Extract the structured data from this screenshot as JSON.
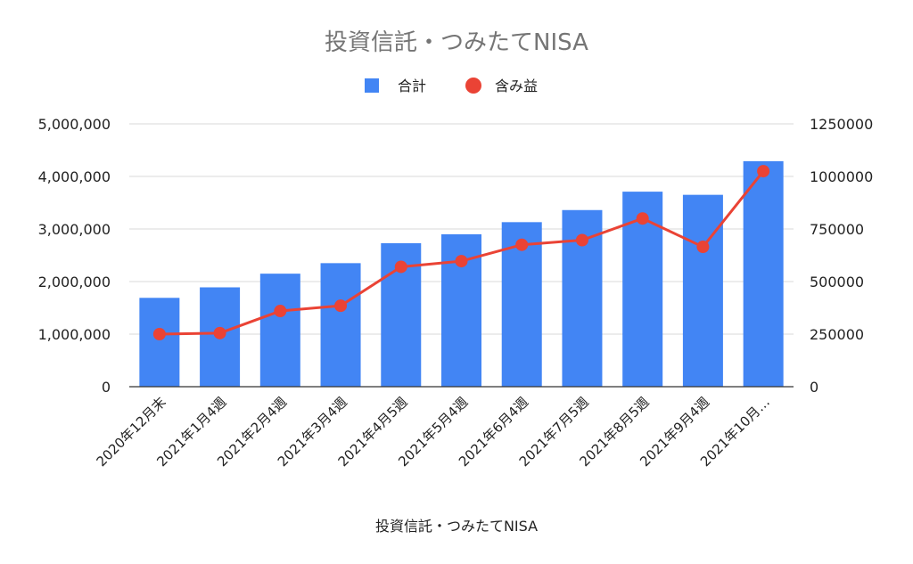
{
  "chart_data": {
    "type": "bar",
    "title": "投資信託・つみたてNISA",
    "xlabel": "投資信託・つみたてNISA",
    "categories": [
      "2020年12月末",
      "2021年1月4週",
      "2021年2月4週",
      "2021年3月4週",
      "2021年4月5週",
      "2021年5月4週",
      "2021年6月4週",
      "2021年7月5週",
      "2021年8月5週",
      "2021年9月4週",
      "2021年10月…"
    ],
    "series": [
      {
        "name": "合計",
        "type": "bar",
        "axis": "left",
        "color": "#4285f4",
        "values": [
          1690000,
          1890000,
          2150000,
          2350000,
          2730000,
          2900000,
          3130000,
          3360000,
          3710000,
          3650000,
          4290000
        ]
      },
      {
        "name": "含み益",
        "type": "line",
        "axis": "right",
        "color": "#ea4335",
        "values": [
          250000,
          255000,
          360000,
          385000,
          570000,
          597000,
          675000,
          697000,
          800000,
          665000,
          1025000
        ]
      }
    ],
    "y_left": {
      "ylim": [
        0,
        5000000
      ],
      "ticks": [
        0,
        1000000,
        2000000,
        3000000,
        4000000,
        5000000
      ],
      "tick_labels": [
        "0",
        "1,000,000",
        "2,000,000",
        "3,000,000",
        "4,000,000",
        "5,000,000"
      ]
    },
    "y_right": {
      "ylim": [
        0,
        1250000
      ],
      "ticks": [
        0,
        250000,
        500000,
        750000,
        1000000,
        1250000
      ],
      "tick_labels": [
        "0",
        "250000",
        "500000",
        "750000",
        "1000000",
        "1250000"
      ]
    },
    "grid": true,
    "legend_position": "top-center"
  }
}
